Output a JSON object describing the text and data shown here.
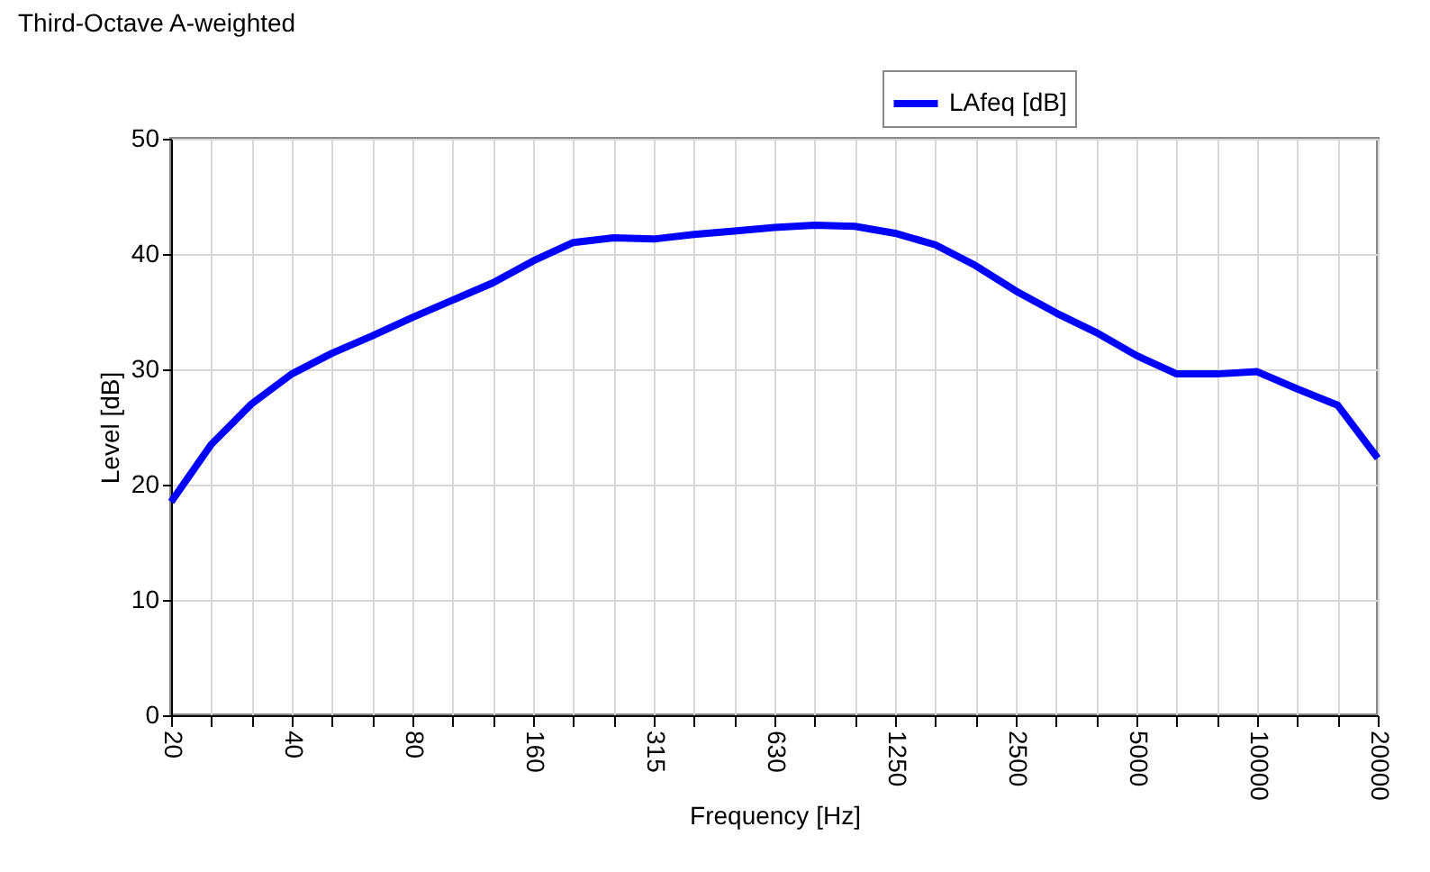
{
  "chart_data": {
    "type": "line",
    "title": "Third-Octave A-weighted",
    "xlabel": "Frequency [Hz]",
    "ylabel": "Level [dB]",
    "categories": [
      "20",
      null,
      null,
      "40",
      null,
      null,
      "80",
      null,
      null,
      "160",
      null,
      null,
      "315",
      null,
      null,
      "630",
      null,
      null,
      "1250",
      null,
      null,
      "2500",
      null,
      null,
      "5000",
      null,
      null,
      "10000",
      null,
      null,
      "20000"
    ],
    "series": [
      {
        "name": "LAfeq [dB]",
        "color": "#0000ff",
        "values": [
          18.5,
          23.5,
          27,
          29.6,
          31.4,
          32.9,
          34.5,
          36,
          37.5,
          39.4,
          41,
          41.4,
          41.3,
          41.7,
          42,
          42.3,
          42.5,
          42.4,
          41.8,
          40.8,
          39,
          36.8,
          34.9,
          33.2,
          31.2,
          29.6,
          29.6,
          29.8,
          28.3,
          26.9,
          22.3
        ]
      }
    ],
    "ylim": [
      0,
      50
    ],
    "yticks": [
      0,
      10,
      20,
      30,
      40,
      50
    ],
    "grid": true,
    "legend": "top right",
    "marker": "none",
    "line_style": "solid"
  }
}
